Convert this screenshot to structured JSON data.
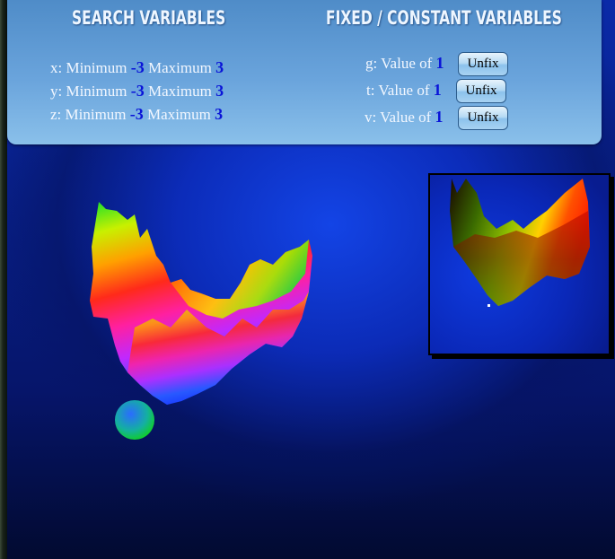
{
  "search_panel": {
    "title": "SEARCH VARIABLES",
    "rows": [
      {
        "var": "x: Minimum ",
        "min": "-3",
        "mid": " Maximum ",
        "max": "3"
      },
      {
        "var": "y: Minimum ",
        "min": "-3",
        "mid": " Maximum ",
        "max": "3"
      },
      {
        "var": "z: Minimum ",
        "min": "-3",
        "mid": " Maximum ",
        "max": "3"
      }
    ]
  },
  "fixed_panel": {
    "title": "FIXED / CONSTANT VARIABLES",
    "rows": [
      {
        "label": "g: Value of ",
        "value": "1",
        "button": "Unfix"
      },
      {
        "label": "t: Value of ",
        "value": "1",
        "button": "Unfix"
      },
      {
        "label": "v: Value of ",
        "value": "1",
        "button": "Unfix"
      }
    ]
  },
  "colors": {
    "panel_top": "#4f8cc8",
    "panel_bottom": "#8ac0ea",
    "value_blue": "#0a14d8",
    "stage_center": "#1446eb",
    "stage_edge": "#020a30"
  }
}
